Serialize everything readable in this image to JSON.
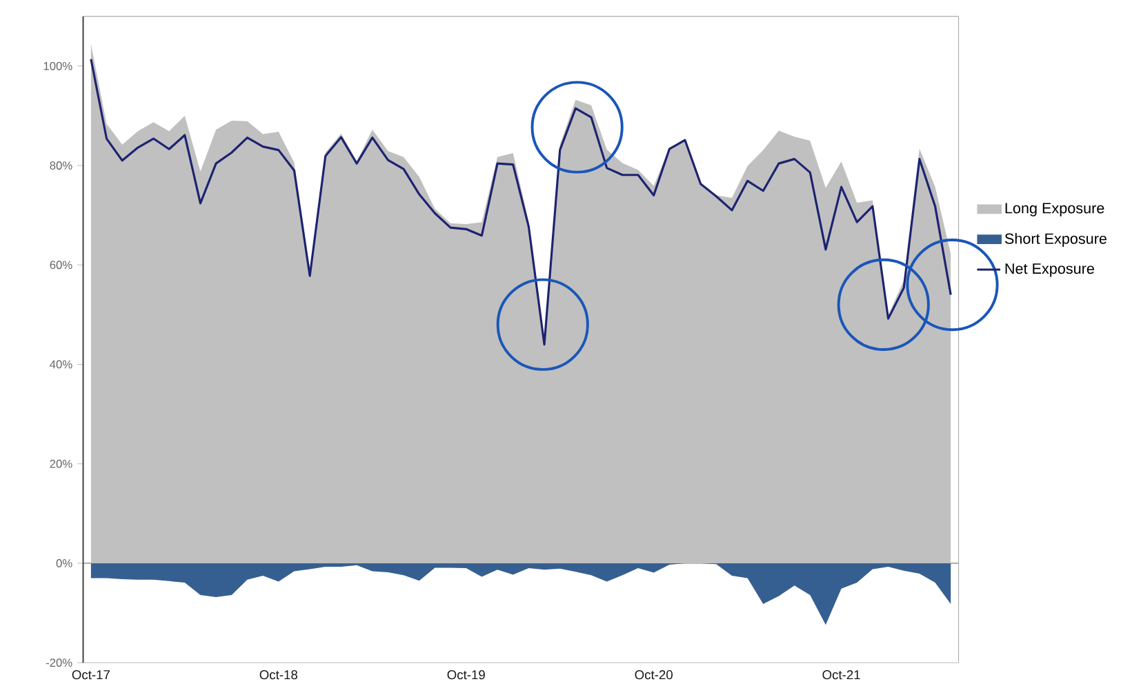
{
  "chart_data": {
    "type": "area",
    "x": [
      "2017-10",
      "2017-11",
      "2017-12",
      "2018-01",
      "2018-02",
      "2018-03",
      "2018-04",
      "2018-05",
      "2018-06",
      "2018-07",
      "2018-08",
      "2018-09",
      "2018-10",
      "2018-11",
      "2018-12",
      "2019-01",
      "2019-02",
      "2019-03",
      "2019-04",
      "2019-05",
      "2019-06",
      "2019-07",
      "2019-08",
      "2019-09",
      "2019-10",
      "2019-11",
      "2019-12",
      "2020-01",
      "2020-02",
      "2020-03",
      "2020-04",
      "2020-05",
      "2020-06",
      "2020-07",
      "2020-08",
      "2020-09",
      "2020-10",
      "2020-11",
      "2020-12",
      "2021-01",
      "2021-02",
      "2021-03",
      "2021-04",
      "2021-05",
      "2021-06",
      "2021-07",
      "2021-08",
      "2021-09",
      "2021-10",
      "2021-11",
      "2021-12",
      "2022-01",
      "2022-02",
      "2022-03",
      "2022-04",
      "2022-05"
    ],
    "series": [
      {
        "name": "Long Exposure",
        "color": "#c0c0c0",
        "values": [
          104.4,
          88.4,
          84.2,
          86.9,
          88.7,
          86.9,
          90.0,
          78.8,
          87.2,
          89.0,
          88.9,
          86.3,
          86.8,
          80.6,
          59.0,
          82.6,
          86.4,
          80.8,
          87.2,
          82.9,
          81.7,
          77.7,
          71.3,
          68.4,
          68.2,
          68.6,
          81.7,
          82.5,
          68.7,
          45.3,
          84.2,
          93.2,
          92.1,
          83.2,
          80.5,
          79.1,
          75.9,
          83.6,
          85.1,
          76.3,
          74.0,
          73.5,
          79.9,
          83.1,
          87.0,
          85.8,
          85.0,
          75.5,
          80.8,
          72.5,
          73.0,
          49.9,
          56.9,
          83.4,
          75.7,
          62.2
        ]
      },
      {
        "name": "Short Exposure",
        "color": "#365f91",
        "values": [
          -3.0,
          -3.0,
          -3.2,
          -3.3,
          -3.3,
          -3.6,
          -3.9,
          -6.4,
          -6.8,
          -6.4,
          -3.3,
          -2.5,
          -3.7,
          -1.6,
          -1.2,
          -0.7,
          -0.7,
          -0.4,
          -1.6,
          -1.8,
          -2.4,
          -3.5,
          -0.9,
          -0.9,
          -1.0,
          -2.7,
          -1.3,
          -2.3,
          -1.0,
          -1.3,
          -1.1,
          -1.7,
          -2.4,
          -3.7,
          -2.4,
          -1.0,
          -1.9,
          -0.3,
          0,
          0,
          -0.2,
          -2.5,
          -3.0,
          -8.2,
          -6.6,
          -4.5,
          -6.4,
          -12.4,
          -5.1,
          -3.9,
          -1.2,
          -0.7,
          -1.5,
          -2.1,
          -3.9,
          -8.2
        ]
      },
      {
        "name": "Net Exposure",
        "type": "line",
        "color": "#1c2370",
        "values": [
          101.4,
          85.4,
          81.0,
          83.6,
          85.4,
          83.3,
          86.1,
          72.4,
          80.4,
          82.6,
          85.6,
          83.8,
          83.1,
          79.0,
          57.8,
          81.9,
          85.7,
          80.4,
          85.6,
          81.1,
          79.3,
          74.2,
          70.4,
          67.5,
          67.2,
          65.9,
          80.4,
          80.2,
          67.7,
          44.0,
          83.1,
          91.5,
          89.7,
          79.5,
          78.1,
          78.1,
          74.0,
          83.3,
          85.1,
          76.3,
          73.8,
          71.0,
          76.9,
          74.9,
          80.4,
          81.3,
          78.6,
          63.1,
          75.7,
          68.6,
          71.8,
          49.2,
          55.4,
          81.3,
          71.8,
          54.0
        ]
      }
    ],
    "xlim": [
      "2017-09-16",
      "2022-05-16"
    ],
    "xticks": [
      {
        "value": "2017-10",
        "label": "Oct-17"
      },
      {
        "value": "2018-10",
        "label": "Oct-18"
      },
      {
        "value": "2019-10",
        "label": "Oct-19"
      },
      {
        "value": "2020-10",
        "label": "Oct-20"
      },
      {
        "value": "2021-10",
        "label": "Oct-21"
      }
    ],
    "ylim": [
      -20,
      110
    ],
    "yticks": [
      {
        "value": -20,
        "label": "-20%"
      },
      {
        "value": 0,
        "label": "0%"
      },
      {
        "value": 20,
        "label": "20%"
      },
      {
        "value": 40,
        "label": "40%"
      },
      {
        "value": 60,
        "label": "60%"
      },
      {
        "value": 80,
        "label": "80%"
      },
      {
        "value": 100,
        "label": "100%"
      }
    ],
    "legend": "right",
    "marker": "none",
    "line_style": "solid"
  }
}
